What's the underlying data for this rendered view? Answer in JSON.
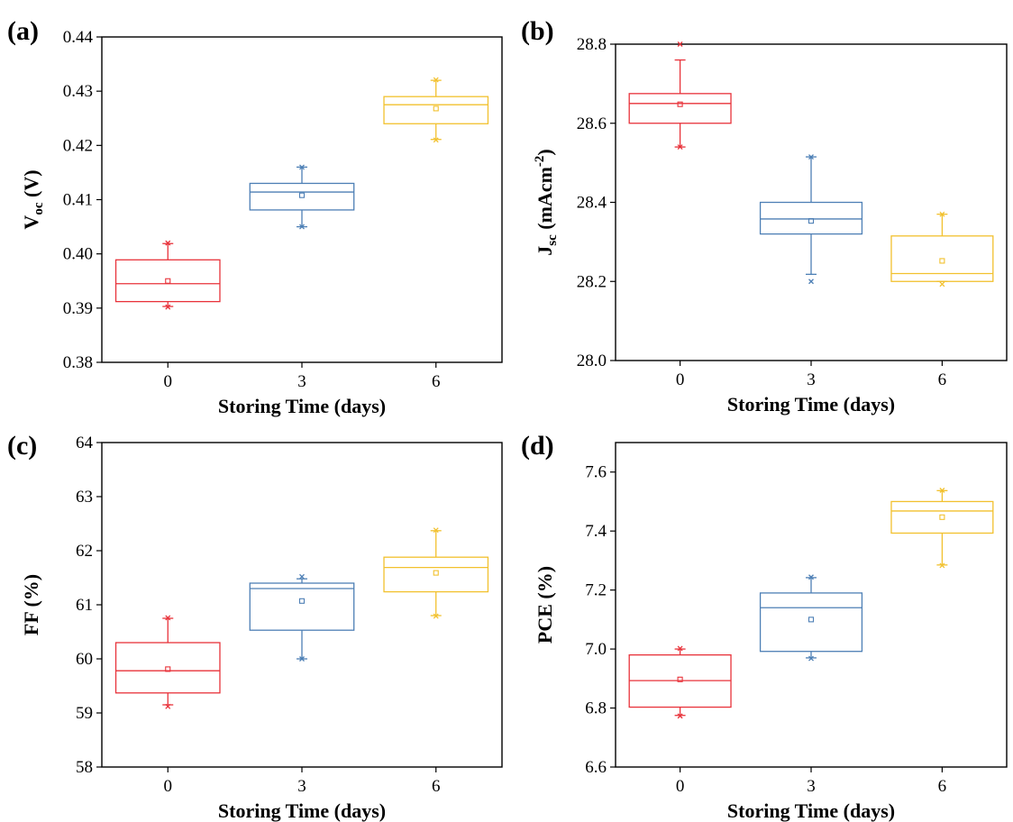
{
  "chart_data": [
    {
      "type": "box",
      "panel_label": "(a)",
      "xlabel": "Storing Time (days)",
      "ylabel": {
        "main": "V",
        "sub": "oc",
        "rest": " (V)"
      },
      "ylim": [
        0.38,
        0.44
      ],
      "yticks": [
        "0.38",
        "0.39",
        "0.40",
        "0.41",
        "0.42",
        "0.43",
        "0.44"
      ],
      "categories": [
        "0",
        "3",
        "6"
      ],
      "boxes": [
        {
          "category": "0",
          "color": "#e8323a",
          "q1": 0.3912,
          "median": 0.3945,
          "q3": 0.3989,
          "mean": 0.395,
          "whisker_low": 0.3903,
          "whisker_high": 0.4019,
          "min": 0.3902,
          "max": 0.402
        },
        {
          "category": "3",
          "color": "#4d7fb5",
          "q1": 0.4081,
          "median": 0.4114,
          "q3": 0.413,
          "mean": 0.4108,
          "whisker_low": 0.405,
          "whisker_high": 0.416,
          "min": 0.405,
          "max": 0.416
        },
        {
          "category": "6",
          "color": "#f2c12e",
          "q1": 0.424,
          "median": 0.4275,
          "q3": 0.429,
          "mean": 0.4268,
          "whisker_low": 0.4211,
          "whisker_high": 0.432,
          "min": 0.421,
          "max": 0.4321
        }
      ]
    },
    {
      "type": "box",
      "panel_label": "(b)",
      "xlabel": "Storing Time (days)",
      "ylabel": {
        "main": "J",
        "sub": "sc",
        "rest": " (mAcm",
        "sup": "-2",
        "end": ")"
      },
      "ylim": [
        28.0,
        28.8
      ],
      "yticks": [
        "28.0",
        "28.2",
        "28.4",
        "28.6",
        "28.8"
      ],
      "categories": [
        "0",
        "3",
        "6"
      ],
      "boxes": [
        {
          "category": "0",
          "color": "#e8323a",
          "q1": 28.6,
          "median": 28.65,
          "q3": 28.675,
          "mean": 28.648,
          "whisker_low": 28.54,
          "whisker_high": 28.76,
          "min": 28.54,
          "max": 28.8
        },
        {
          "category": "3",
          "color": "#4d7fb5",
          "q1": 28.32,
          "median": 28.358,
          "q3": 28.4,
          "mean": 28.353,
          "whisker_low": 28.218,
          "whisker_high": 28.515,
          "min": 28.2,
          "max": 28.515
        },
        {
          "category": "6",
          "color": "#f2c12e",
          "q1": 28.2,
          "median": 28.22,
          "q3": 28.315,
          "mean": 28.252,
          "whisker_low": 28.2,
          "whisker_high": 28.37,
          "min": 28.193,
          "max": 28.37
        }
      ]
    },
    {
      "type": "box",
      "panel_label": "(c)",
      "xlabel": "Storing Time (days)",
      "ylabel": {
        "main": "FF (%)"
      },
      "ylim": [
        58,
        64
      ],
      "yticks": [
        "58",
        "59",
        "60",
        "61",
        "62",
        "63",
        "64"
      ],
      "categories": [
        "0",
        "3",
        "6"
      ],
      "boxes": [
        {
          "category": "0",
          "color": "#e8323a",
          "q1": 59.37,
          "median": 59.78,
          "q3": 60.3,
          "mean": 59.81,
          "whisker_low": 59.15,
          "whisker_high": 60.75,
          "min": 59.12,
          "max": 60.76
        },
        {
          "category": "3",
          "color": "#4d7fb5",
          "q1": 60.53,
          "median": 61.3,
          "q3": 61.4,
          "mean": 61.07,
          "whisker_low": 60.0,
          "whisker_high": 61.48,
          "min": 60.0,
          "max": 61.52
        },
        {
          "category": "6",
          "color": "#f2c12e",
          "q1": 61.24,
          "median": 61.69,
          "q3": 61.88,
          "mean": 61.59,
          "whisker_low": 60.8,
          "whisker_high": 62.37,
          "min": 60.79,
          "max": 62.38
        }
      ]
    },
    {
      "type": "box",
      "panel_label": "(d)",
      "xlabel": "Storing Time (days)",
      "ylabel": {
        "main": "PCE (%)"
      },
      "ylim": [
        6.6,
        7.7
      ],
      "yticks": [
        "6.6",
        "6.8",
        "7.0",
        "7.2",
        "7.4",
        "7.6"
      ],
      "categories": [
        "0",
        "3",
        "6"
      ],
      "boxes": [
        {
          "category": "0",
          "color": "#e8323a",
          "q1": 6.803,
          "median": 6.893,
          "q3": 6.98,
          "mean": 6.897,
          "whisker_low": 6.775,
          "whisker_high": 7.0,
          "min": 6.773,
          "max": 7.002
        },
        {
          "category": "3",
          "color": "#4d7fb5",
          "q1": 6.992,
          "median": 7.14,
          "q3": 7.19,
          "mean": 7.1,
          "whisker_low": 6.97,
          "whisker_high": 7.242,
          "min": 6.968,
          "max": 7.244
        },
        {
          "category": "6",
          "color": "#f2c12e",
          "q1": 7.393,
          "median": 7.468,
          "q3": 7.5,
          "mean": 7.447,
          "whisker_low": 7.285,
          "whisker_high": 7.537,
          "min": 7.283,
          "max": 7.538
        }
      ]
    }
  ]
}
